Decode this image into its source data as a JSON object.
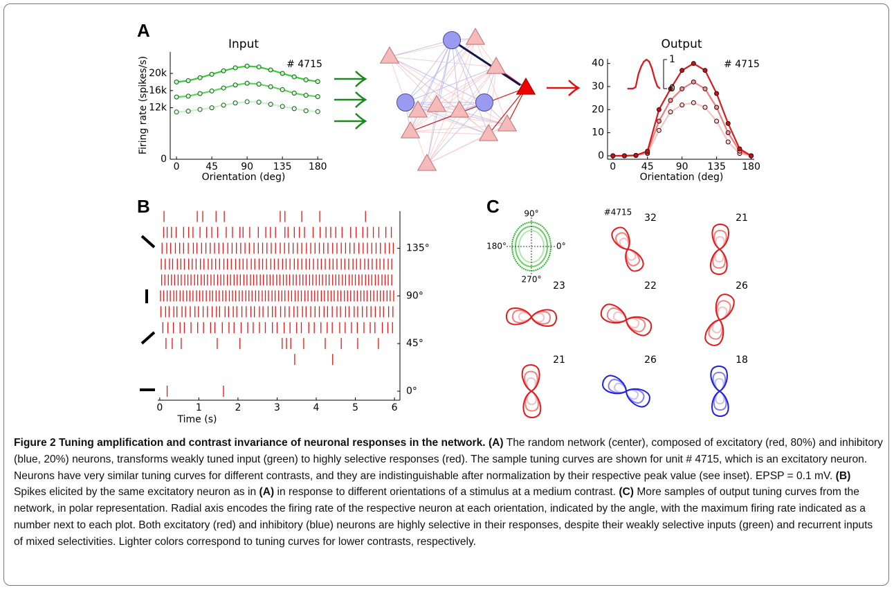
{
  "chart_data": [
    {
      "type": "line",
      "title": "Input",
      "annotation": "# 4715",
      "xlabel": "Orientation (deg)",
      "ylabel": "Firing rate (spikes/s)",
      "x": [
        0,
        15,
        30,
        45,
        60,
        75,
        90,
        105,
        120,
        135,
        150,
        165,
        180
      ],
      "xlim": [
        -8,
        186
      ],
      "xticks": [
        0,
        45,
        90,
        135,
        180
      ],
      "ylim": [
        0,
        25000
      ],
      "yticks": [
        0,
        {
          "value": 12000,
          "label": "12k"
        },
        {
          "value": 16000,
          "label": "16k"
        },
        {
          "value": 20000,
          "label": "20k"
        }
      ],
      "marker_edge": "#0b5d0b",
      "series": [
        {
          "color": "#33cc33",
          "marker_color": "#c9f2c9",
          "values": [
            18000,
            18300,
            19000,
            19800,
            20600,
            21300,
            21700,
            21500,
            20800,
            20000,
            19200,
            18500,
            18100
          ]
        },
        {
          "color": "#5fd35f",
          "marker_color": "#ddf7dd",
          "values": [
            14500,
            14700,
            15300,
            15900,
            16600,
            17300,
            17700,
            17500,
            16900,
            16200,
            15400,
            14900,
            14600
          ]
        },
        {
          "color": "#c8efc8",
          "marker_color": "#f2fcf2",
          "values": [
            11000,
            11200,
            11600,
            12000,
            12600,
            13100,
            13400,
            13300,
            12800,
            12300,
            11800,
            11300,
            11100
          ]
        }
      ]
    },
    {
      "type": "line",
      "title": "Output",
      "annotation": "# 4715",
      "xlabel": "Orientation (deg)",
      "x": [
        0,
        15,
        30,
        45,
        60,
        75,
        90,
        105,
        120,
        135,
        150,
        165,
        180
      ],
      "xlim": [
        -7,
        184
      ],
      "xticks": [
        0,
        45,
        90,
        135,
        180
      ],
      "ylim": [
        -1.5,
        42
      ],
      "yticks": [
        0,
        10,
        20,
        30,
        40
      ],
      "marker_edge": "#3a0000",
      "series": [
        {
          "color": "#d7191c",
          "marker_color": "#c0161a",
          "values": [
            0,
            0,
            0.2,
            2,
            20,
            29,
            37,
            40,
            37,
            27,
            14,
            3,
            0
          ]
        },
        {
          "color": "#eb7c7d",
          "marker_color": "#e89a9a",
          "values": [
            0,
            0,
            0.2,
            1.5,
            15,
            24,
            29,
            32,
            29,
            21,
            10,
            2,
            0
          ]
        },
        {
          "color": "#f6c3c3",
          "marker_color": "#f7d6d6",
          "values": [
            0,
            0,
            0.1,
            1,
            11,
            19,
            22,
            23,
            21,
            15,
            6,
            1,
            0
          ]
        }
      ],
      "inset": {
        "ylim": [
          0,
          1
        ],
        "yticks": [
          0,
          1
        ],
        "series": [
          {
            "color": "#d7191c",
            "values": [
              0,
              0,
              0,
              0.05,
              0.5,
              0.75,
              0.93,
              1,
              0.93,
              0.7,
              0.35,
              0.08,
              0
            ]
          },
          {
            "color": "#f09a9a",
            "values": [
              0,
              0,
              0,
              0.06,
              0.47,
              0.76,
              0.92,
              1,
              0.92,
              0.68,
              0.33,
              0.07,
              0
            ]
          }
        ]
      }
    },
    {
      "type": "raster",
      "xlabel": "Time (s)",
      "color": "#ee1111",
      "xlim": [
        -0.05,
        6.14
      ],
      "xticks": [
        0,
        1,
        2,
        3,
        4,
        5,
        6
      ],
      "ylim": [
        -8.5,
        170
      ],
      "yticks": [
        {
          "value": 0,
          "label": "0°"
        },
        {
          "value": 45,
          "label": "45°"
        },
        {
          "value": 90,
          "label": "90°"
        },
        {
          "value": 135,
          "label": "135°"
        }
      ],
      "rows": [
        {
          "y": 0,
          "spikes": [
            0.19,
            1.63
          ]
        },
        {
          "y": 15,
          "spikes": []
        },
        {
          "y": 30,
          "spikes": [
            3.45,
            4.42
          ]
        },
        {
          "y": 45,
          "spikes": [
            0.16,
            0.32,
            0.55,
            1.47,
            2.05,
            3.13,
            3.24,
            3.35,
            3.68,
            4.23,
            4.64,
            5.06,
            5.59
          ]
        },
        {
          "y": 60,
          "spikes": [
            0.08,
            0.21,
            0.35,
            0.52,
            0.63,
            0.8,
            0.97,
            1.12,
            1.3,
            1.41,
            1.6,
            1.77,
            1.9,
            2.08,
            2.25,
            2.39,
            2.55,
            2.7,
            2.88,
            3.0,
            3.18,
            3.33,
            3.5,
            3.62,
            3.81,
            3.95,
            4.12,
            4.28,
            4.41,
            4.6,
            4.74,
            4.9,
            5.05,
            5.22,
            5.38,
            5.5,
            5.69,
            5.83,
            5.95
          ]
        },
        {
          "y": 75,
          "spikes": [
            0.03,
            0.15,
            0.24,
            0.36,
            0.44,
            0.57,
            0.66,
            0.78,
            0.9,
            0.99,
            1.11,
            1.22,
            1.34,
            1.45,
            1.53,
            1.67,
            1.76,
            1.88,
            1.97,
            2.1,
            2.21,
            2.33,
            2.42,
            2.55,
            2.64,
            2.77,
            2.88,
            2.96,
            3.09,
            3.2,
            3.31,
            3.43,
            3.52,
            3.65,
            3.74,
            3.86,
            3.97,
            4.08,
            4.2,
            4.29,
            4.41,
            4.53,
            4.62,
            4.75,
            4.84,
            4.97,
            5.06,
            5.18,
            5.29,
            5.4,
            5.51,
            5.63,
            5.72,
            5.85,
            5.96
          ]
        },
        {
          "y": 90,
          "spikes": [
            0.02,
            0.1,
            0.19,
            0.27,
            0.36,
            0.43,
            0.52,
            0.6,
            0.69,
            0.77,
            0.85,
            0.94,
            1.02,
            1.1,
            1.19,
            1.28,
            1.35,
            1.44,
            1.52,
            1.61,
            1.69,
            1.78,
            1.86,
            1.94,
            2.03,
            2.11,
            2.2,
            2.28,
            2.36,
            2.45,
            2.53,
            2.62,
            2.7,
            2.78,
            2.87,
            2.95,
            3.04,
            3.12,
            3.2,
            3.29,
            3.37,
            3.46,
            3.54,
            3.62,
            3.71,
            3.79,
            3.88,
            3.96,
            4.04,
            4.13,
            4.21,
            4.3,
            4.38,
            4.46,
            4.55,
            4.63,
            4.72,
            4.8,
            4.88,
            4.97,
            5.05,
            5.14,
            5.22,
            5.3,
            5.39,
            5.47,
            5.56,
            5.64,
            5.72,
            5.81,
            5.89,
            5.98
          ]
        },
        {
          "y": 105,
          "spikes": [
            0.05,
            0.13,
            0.22,
            0.3,
            0.38,
            0.47,
            0.55,
            0.64,
            0.72,
            0.8,
            0.89,
            0.97,
            1.06,
            1.14,
            1.22,
            1.31,
            1.39,
            1.48,
            1.56,
            1.64,
            1.73,
            1.81,
            1.9,
            1.98,
            2.06,
            2.15,
            2.23,
            2.32,
            2.4,
            2.48,
            2.57,
            2.65,
            2.74,
            2.82,
            2.9,
            2.99,
            3.07,
            3.16,
            3.24,
            3.32,
            3.41,
            3.49,
            3.58,
            3.66,
            3.74,
            3.83,
            3.91,
            4.0,
            4.08,
            4.16,
            4.25,
            4.33,
            4.42,
            4.5,
            4.58,
            4.67,
            4.75,
            4.84,
            4.92,
            5.0,
            5.09,
            5.17,
            5.26,
            5.34,
            5.42,
            5.51,
            5.59,
            5.68,
            5.76,
            5.84,
            5.93
          ]
        },
        {
          "y": 120,
          "spikes": [
            0.04,
            0.14,
            0.25,
            0.33,
            0.45,
            0.54,
            0.63,
            0.74,
            0.83,
            0.93,
            1.04,
            1.13,
            1.24,
            1.33,
            1.43,
            1.53,
            1.64,
            1.73,
            1.83,
            1.94,
            2.04,
            2.13,
            2.23,
            2.34,
            2.43,
            2.54,
            2.63,
            2.73,
            2.84,
            2.93,
            3.03,
            3.14,
            3.23,
            3.33,
            3.44,
            3.53,
            3.63,
            3.74,
            3.83,
            3.93,
            4.04,
            4.13,
            4.23,
            4.34,
            4.43,
            4.53,
            4.64,
            4.73,
            4.83,
            4.94,
            5.03,
            5.13,
            5.24,
            5.33,
            5.43,
            5.54,
            5.63,
            5.73,
            5.84,
            5.93
          ]
        },
        {
          "y": 135,
          "spikes": [
            0.06,
            0.18,
            0.28,
            0.4,
            0.51,
            0.61,
            0.73,
            0.86,
            0.95,
            1.07,
            1.18,
            1.29,
            1.4,
            1.51,
            1.62,
            1.74,
            1.85,
            1.96,
            2.07,
            2.18,
            2.29,
            2.41,
            2.52,
            2.63,
            2.74,
            2.85,
            2.96,
            3.08,
            3.19,
            3.3,
            3.41,
            3.52,
            3.63,
            3.75,
            3.86,
            3.97,
            4.08,
            4.19,
            4.3,
            4.42,
            4.53,
            4.64,
            4.75,
            4.86,
            4.97,
            5.09,
            5.2,
            5.31,
            5.42,
            5.53,
            5.64,
            5.76,
            5.87,
            5.97
          ]
        },
        {
          "y": 150,
          "spikes": [
            0.1,
            0.19,
            0.3,
            0.42,
            0.61,
            0.74,
            0.85,
            1.03,
            1.2,
            1.33,
            1.48,
            1.7,
            1.86,
            2.05,
            2.13,
            2.3,
            2.52,
            2.71,
            2.83,
            2.96,
            3.2,
            3.28,
            3.44,
            3.57,
            3.7,
            3.92,
            4.1,
            4.25,
            4.37,
            4.5,
            4.66,
            4.88,
            5.02,
            5.19,
            5.31,
            5.46,
            5.6,
            5.78,
            5.92
          ]
        },
        {
          "y": 165,
          "spikes": [
            0.11,
            0.96,
            1.1,
            1.44,
            1.65,
            3.08,
            3.2,
            3.63,
            4.09,
            5.26
          ]
        }
      ]
    }
  ],
  "figure": {
    "panel_labels": [
      "A",
      "B",
      "C"
    ],
    "polar": {
      "axis_labels": [
        "90°",
        "180°",
        "0°",
        "270°"
      ],
      "unit_label": "#4715",
      "input_colors": [
        "#22bb22",
        "#66cc66",
        "#aee6ae"
      ],
      "plots": [
        {
          "value": 32,
          "colors": [
            "#e31a1c",
            "#f08080",
            "#f7c0c0"
          ]
        },
        {
          "value": 21,
          "colors": [
            "#e31a1c",
            "#f08080",
            "#f7c0c0"
          ]
        },
        {
          "value": 23,
          "colors": [
            "#e31a1c",
            "#f08080",
            "#f7c0c0"
          ]
        },
        {
          "value": 22,
          "colors": [
            "#e31a1c",
            "#f08080",
            "#f7c0c0"
          ]
        },
        {
          "value": 26,
          "colors": [
            "#e31a1c",
            "#f08080",
            "#f7c0c0"
          ]
        },
        {
          "value": 21,
          "colors": [
            "#e31a1c",
            "#f08080",
            "#f7c0c0"
          ]
        },
        {
          "value": 26,
          "colors": [
            "#1f1fe0",
            "#8080f0",
            "#c0c0f8"
          ]
        },
        {
          "value": 18,
          "colors": [
            "#1f1fe0",
            "#8080f0",
            "#c0c0f8"
          ]
        }
      ]
    }
  },
  "caption": [
    "Figure 2 Tuning amplification and contrast invariance of neuronal responses in the network.",
    "(A)",
    "The random network (center), composed of excitatory (red, 80%) and inhibitory (blue, 20%) neurons, transforms weakly tuned input (green) to highly selective responses (red). The sample tuning curves are shown for unit # 4715, which is an excitatory neuron. Neurons have very similar tuning curves for different contrasts, and they are indistinguishable after normalization by their respective peak value (see inset). EPSP = 0.1 mV.",
    "(B)",
    "Spikes elicited by the same excitatory neuron as in",
    "(A)",
    "in response to different orientations of a stimulus at a medium contrast.",
    "(C)",
    "More samples of output tuning curves from the network, in polar representation. Radial axis encodes the firing rate of the respective neuron at each orientation, indicated by the angle, with the maximum firing rate indicated as a number next to each plot. Both excitatory (red) and inhibitory (blue) neurons are highly selective in their responses, despite their weakly selective inputs (green) and recurrent inputs of mixed selectivities. Lighter colors correspond to tuning curves for lower contrasts, respectively."
  ]
}
